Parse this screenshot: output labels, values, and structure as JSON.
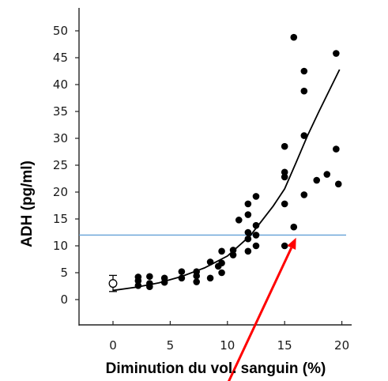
{
  "chart_data": {
    "type": "scatter",
    "xlabel": "Diminution du vol. sanguin (%)",
    "ylabel": "ADH (pg/ml)",
    "xlim": [
      -2.6,
      20.6
    ],
    "ylim": [
      -5,
      54
    ],
    "x_ticks": [
      "0",
      "5",
      "10",
      "15",
      "20"
    ],
    "y_ticks": [
      "0",
      "5",
      "10",
      "15",
      "20",
      "25",
      "30",
      "35",
      "40",
      "45",
      "50"
    ],
    "grid": false,
    "control_point": {
      "x": 0,
      "y": 3,
      "err_low": 1.5,
      "err_high": 4.5
    },
    "points": [
      [
        2.2,
        4.2
      ],
      [
        2.2,
        3.5
      ],
      [
        2.2,
        2.6
      ],
      [
        3.2,
        4.3
      ],
      [
        3.2,
        3.0
      ],
      [
        3.2,
        2.4
      ],
      [
        4.5,
        4.0
      ],
      [
        4.5,
        3.2
      ],
      [
        6.0,
        5.2
      ],
      [
        6.0,
        4.0
      ],
      [
        7.3,
        5.2
      ],
      [
        7.3,
        4.4
      ],
      [
        7.3,
        3.3
      ],
      [
        8.5,
        7.0
      ],
      [
        8.5,
        4.0
      ],
      [
        9.2,
        6.2
      ],
      [
        9.5,
        9.0
      ],
      [
        9.5,
        6.8
      ],
      [
        9.5,
        5.0
      ],
      [
        10.5,
        9.2
      ],
      [
        10.5,
        8.3
      ],
      [
        11.0,
        14.8
      ],
      [
        11.8,
        17.8
      ],
      [
        11.8,
        15.8
      ],
      [
        11.8,
        12.5
      ],
      [
        11.8,
        11.3
      ],
      [
        11.8,
        9.0
      ],
      [
        12.5,
        19.2
      ],
      [
        12.5,
        13.8
      ],
      [
        12.5,
        12.0
      ],
      [
        12.5,
        10.0
      ],
      [
        15.0,
        28.5
      ],
      [
        15.0,
        23.7
      ],
      [
        15.0,
        22.8
      ],
      [
        15.0,
        17.8
      ],
      [
        15.0,
        10.0
      ],
      [
        15.8,
        48.8
      ],
      [
        15.8,
        13.5
      ],
      [
        16.7,
        42.5
      ],
      [
        16.7,
        38.8
      ],
      [
        16.7,
        30.5
      ],
      [
        16.7,
        19.5
      ],
      [
        17.8,
        22.2
      ],
      [
        18.7,
        23.3
      ],
      [
        19.5,
        45.8
      ],
      [
        19.5,
        28.0
      ],
      [
        19.7,
        21.5
      ]
    ],
    "fit_curve": [
      [
        0,
        1.7
      ],
      [
        2,
        2.3
      ],
      [
        4,
        3.1
      ],
      [
        6,
        4.3
      ],
      [
        8,
        5.9
      ],
      [
        10,
        8.1
      ],
      [
        12,
        11.9
      ],
      [
        14,
        17.4
      ],
      [
        15,
        20.6
      ],
      [
        16,
        25.5
      ],
      [
        17,
        30.5
      ],
      [
        18,
        35.0
      ],
      [
        19.8,
        42.8
      ]
    ],
    "threshold_line": {
      "y": 12,
      "color": "#5b9bd5"
    },
    "arrow": {
      "color": "#ff0000",
      "from": [
        9.5,
        -18
      ],
      "to": [
        16.0,
        11.5
      ]
    }
  }
}
